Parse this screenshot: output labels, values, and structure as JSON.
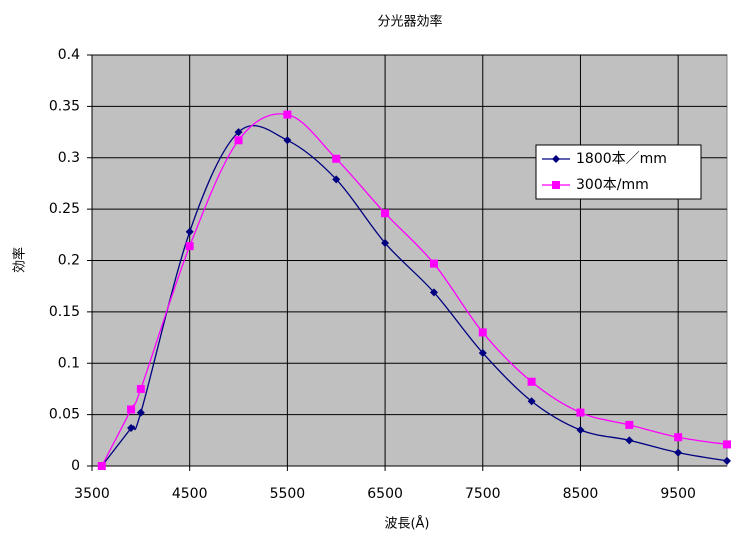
{
  "chart_data": {
    "type": "line",
    "title": "分光器効率",
    "x_label": "波長(Å)",
    "y_label": "効率",
    "x": [
      3600,
      3900,
      4000,
      4500,
      5000,
      5500,
      6000,
      6500,
      7000,
      7500,
      8000,
      8500,
      9000,
      9500,
      10000
    ],
    "series": [
      {
        "name": "1800本／mm",
        "color": "#000080",
        "marker": "diamond",
        "values": [
          0,
          0.037,
          0.052,
          0.228,
          0.325,
          0.317,
          0.279,
          0.217,
          0.169,
          0.11,
          0.063,
          0.035,
          0.025,
          0.013,
          0.005
        ]
      },
      {
        "name": "300本/mm",
        "color": "#ff00ff",
        "marker": "square",
        "values": [
          0,
          0.055,
          0.075,
          0.214,
          0.317,
          0.342,
          0.299,
          0.246,
          0.197,
          0.13,
          0.082,
          0.052,
          0.04,
          0.028,
          0.021
        ]
      }
    ],
    "xlim": [
      3500,
      10000
    ],
    "xticks": [
      3500,
      4500,
      5500,
      6500,
      7500,
      8500,
      9500
    ],
    "ylim": [
      0,
      0.4
    ],
    "yticks": [
      0,
      0.05,
      0.1,
      0.15,
      0.2,
      0.25,
      0.3,
      0.35,
      0.4
    ],
    "grid": true,
    "smooth": true,
    "legend": "upper right",
    "plot_background": "#c0c0c0"
  }
}
